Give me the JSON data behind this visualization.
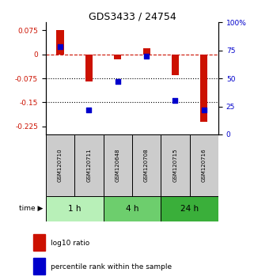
{
  "title": "GDS3433 / 24754",
  "samples": [
    "GSM120710",
    "GSM120711",
    "GSM120648",
    "GSM120708",
    "GSM120715",
    "GSM120716"
  ],
  "log10_ratio": [
    0.075,
    -0.085,
    -0.015,
    0.02,
    -0.065,
    -0.21
  ],
  "percentile_rank": [
    78,
    22,
    47,
    70,
    30,
    22
  ],
  "time_groups": [
    {
      "label": "1 h",
      "samples": [
        0,
        1
      ],
      "color": "#b8f0b8"
    },
    {
      "label": "4 h",
      "samples": [
        2,
        3
      ],
      "color": "#6dce6d"
    },
    {
      "label": "24 h",
      "samples": [
        4,
        5
      ],
      "color": "#3aaf3a"
    }
  ],
  "ylim_left": [
    -0.25,
    0.1
  ],
  "ylim_right": [
    0,
    100
  ],
  "yticks_left": [
    0.075,
    0,
    -0.075,
    -0.15,
    -0.225
  ],
  "yticks_right": [
    100,
    75,
    50,
    25,
    0
  ],
  "bar_color": "#cc1100",
  "dot_color": "#0000cc",
  "hline_y": 0,
  "dotted_lines": [
    -0.075,
    -0.15
  ],
  "background_color": "#ffffff",
  "sample_box_color": "#cccccc",
  "legend_entries": [
    "log10 ratio",
    "percentile rank within the sample"
  ],
  "bar_width": 0.25
}
